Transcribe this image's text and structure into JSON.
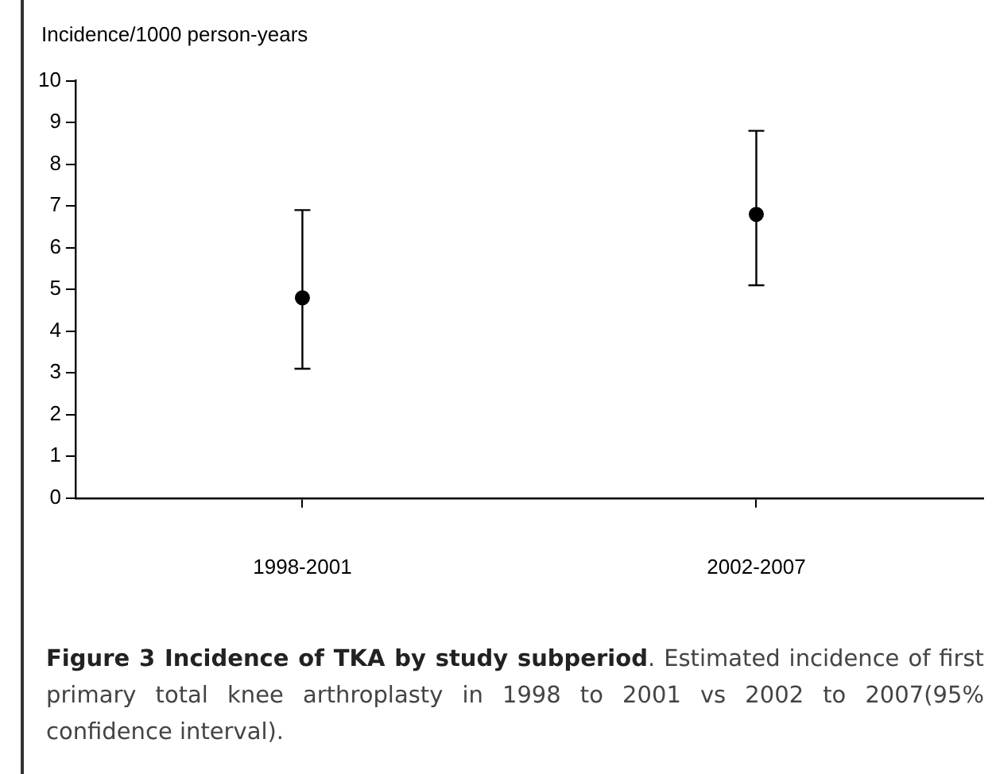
{
  "chart_data": {
    "type": "scatter",
    "ylabel": "Incidence/1000 person-years",
    "categories": [
      "1998-2001",
      "2002-2007"
    ],
    "values": [
      4.8,
      6.8
    ],
    "errors": [
      [
        3.1,
        6.9
      ],
      [
        5.1,
        8.8
      ]
    ],
    "color": "#000000",
    "marker": "circle",
    "ylim": [
      0,
      10
    ],
    "yticks": [
      0,
      1,
      2,
      3,
      4,
      5,
      6,
      7,
      8,
      9,
      10
    ],
    "grid": false,
    "legend": false,
    "annotations": [
      "Figure 3 Incidence of TKA by study subperiod",
      ". Estimated incidence of first primary total knee arthroplasty in 1998 to 2001 vs 2002 to 2007(95% confidence interval)."
    ]
  }
}
